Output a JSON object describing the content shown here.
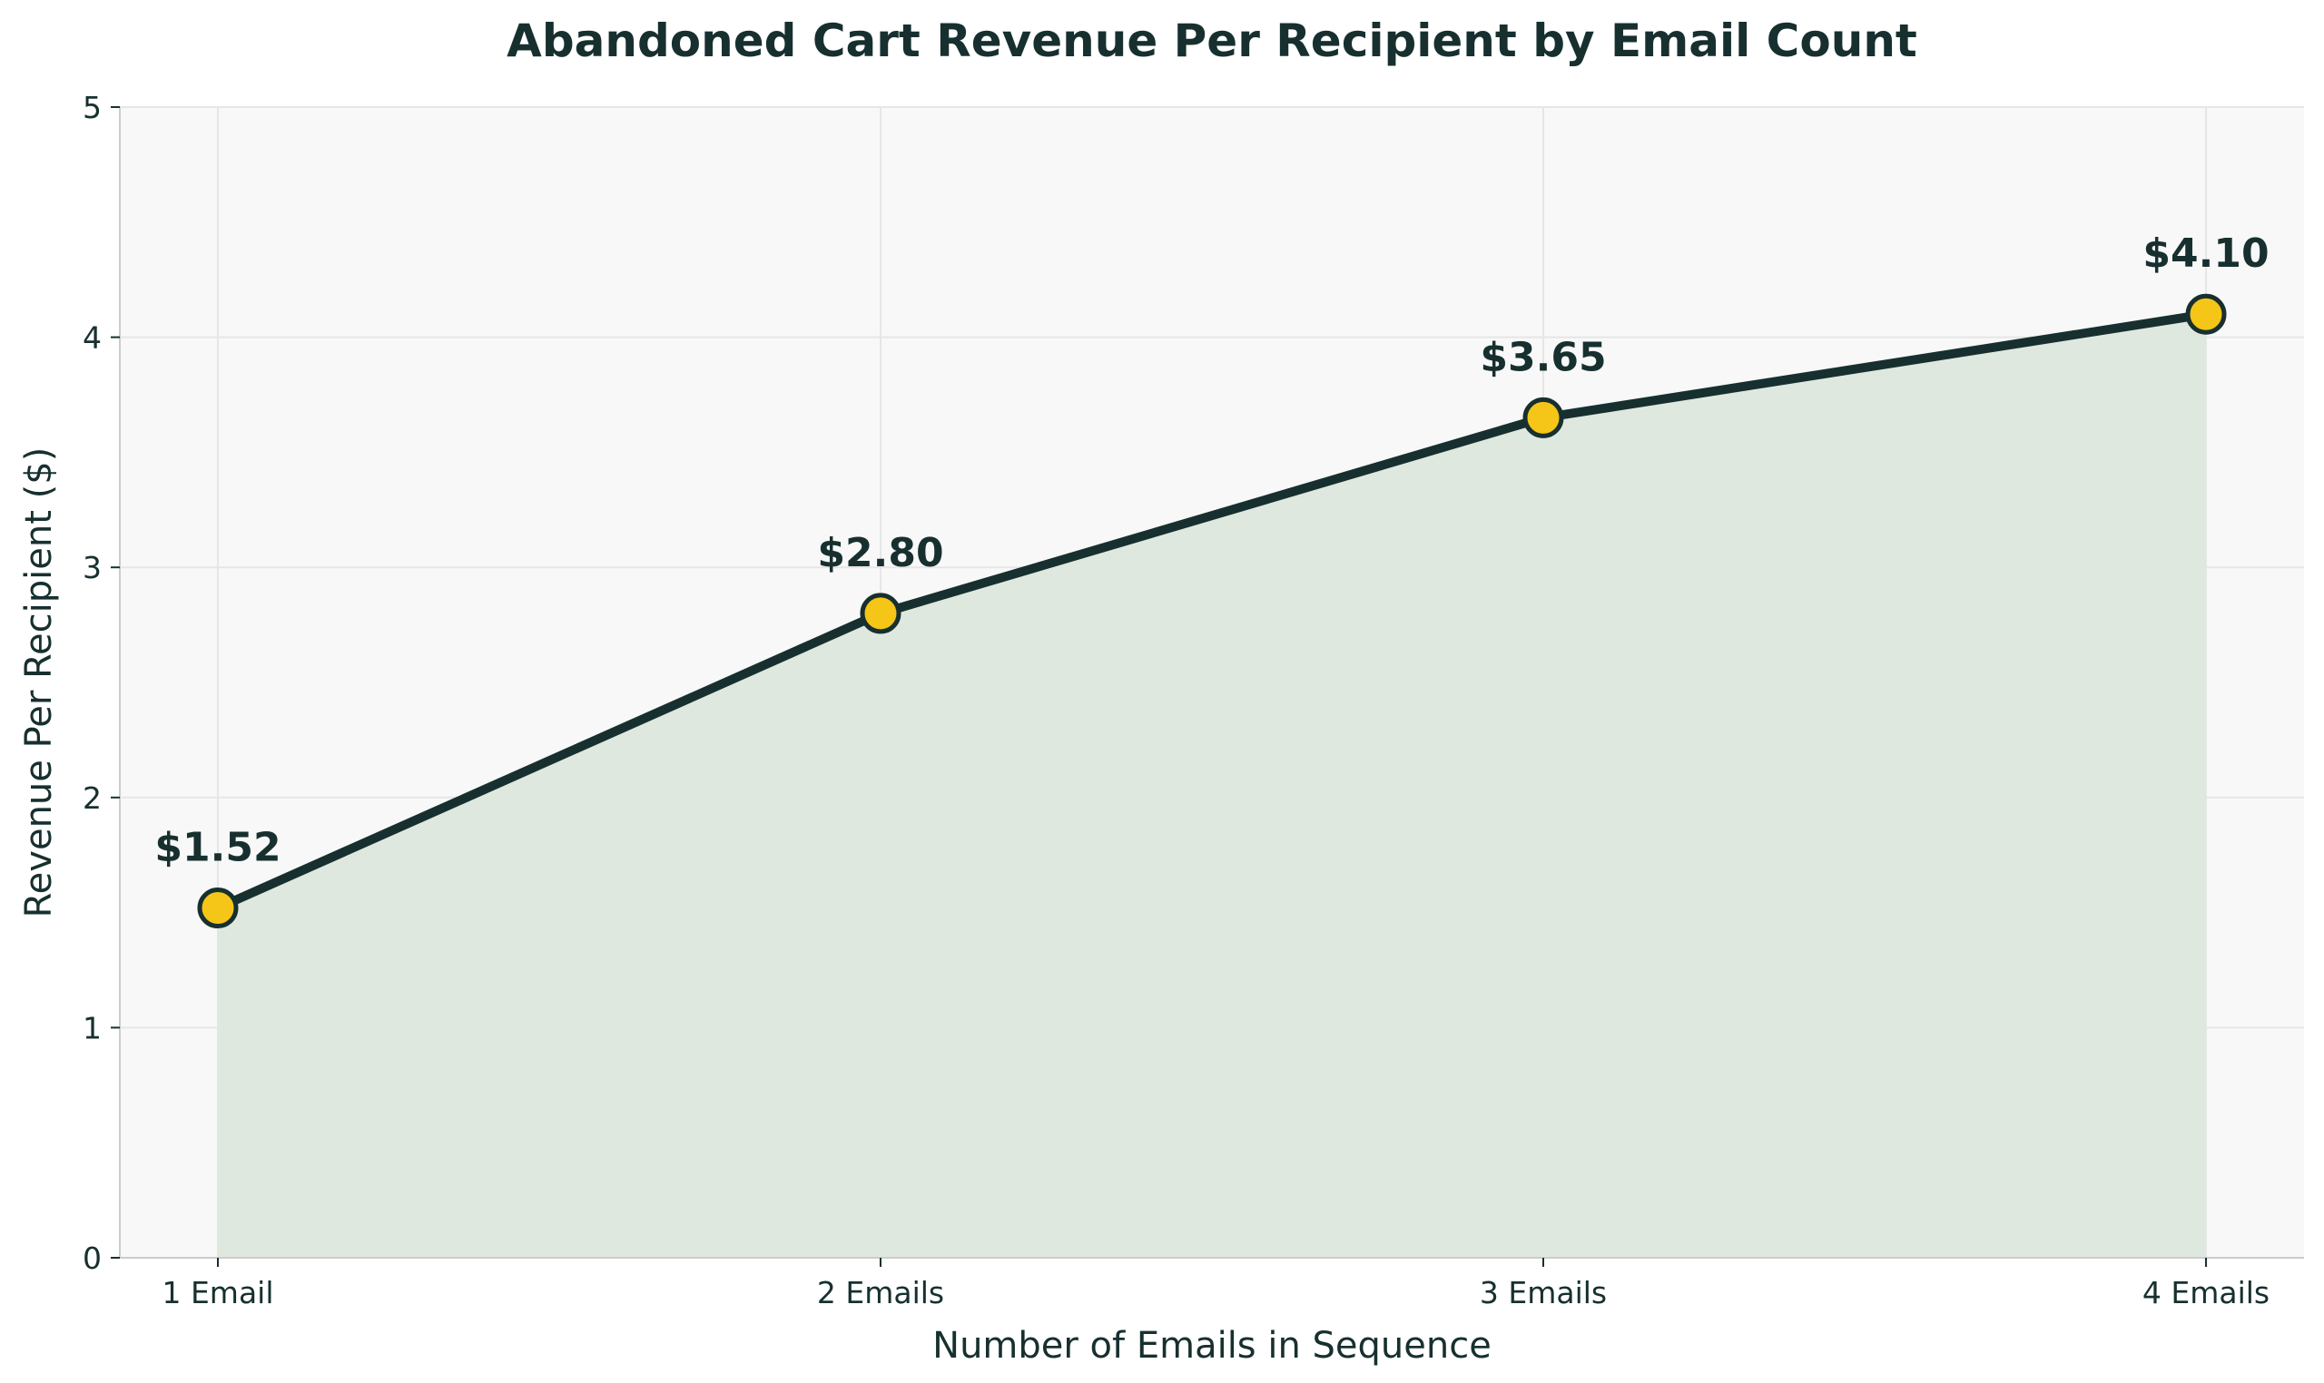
{
  "chart_data": {
    "type": "area",
    "title": "Abandoned Cart Revenue Per Recipient by Email Count",
    "xlabel": "Number of Emails in Sequence",
    "ylabel": "Revenue Per Recipient ($)",
    "categories": [
      "1 Email",
      "2 Emails",
      "3 Emails",
      "4 Emails"
    ],
    "values": [
      1.52,
      2.8,
      3.65,
      4.1
    ],
    "data_labels": [
      "$1.52",
      "$2.80",
      "$3.65",
      "$4.10"
    ],
    "ylim": [
      0,
      5
    ],
    "yticks": [
      "0",
      "1",
      "2",
      "3",
      "4",
      "5"
    ],
    "grid": true,
    "legend": "none",
    "colors": {
      "line": "#17302f",
      "marker_fill": "#f5c518",
      "area_fill": "#dfe8df",
      "plot_background": "#f8f8f8",
      "grid": "#e6e6e6",
      "text": "#17302f"
    }
  }
}
